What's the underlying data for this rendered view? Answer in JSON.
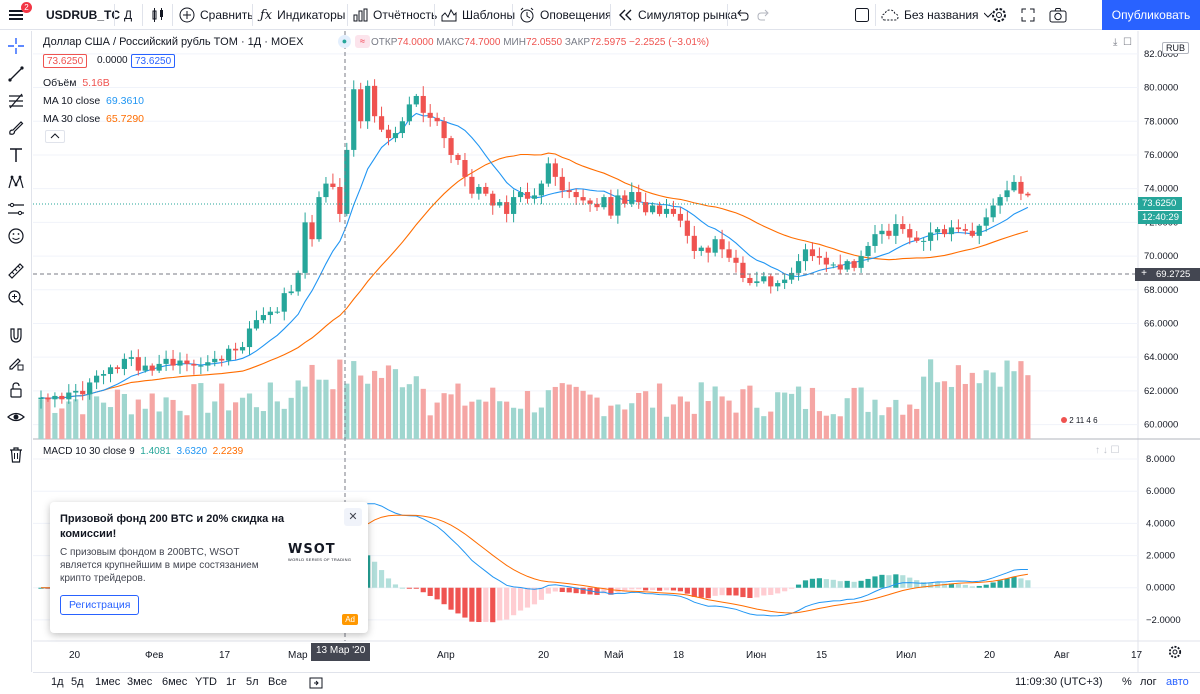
{
  "toolbar": {
    "symbol": "USDRUB_TC",
    "notifications": "2",
    "interval": "Д",
    "compare": "Сравнить",
    "indicators": "Индикаторы",
    "financials": "Отчётность",
    "templates": "Шаблоны",
    "alerts": "Оповещения",
    "replay": "Симулятор рынка",
    "layout_name": "Без названия",
    "publish": "Опубликовать"
  },
  "legend": {
    "title": "Доллар США / Российский рубль TOM · 1Д · MOEX",
    "open_label": "ОТКР",
    "open": "74.0000",
    "high_label": "МАКС",
    "high": "74.7000",
    "low_label": "МИН",
    "low": "72.0550",
    "close_label": "ЗАКР",
    "close": "72.5975",
    "change": "−2.2525 (−3.01%)",
    "bid": "73.6250",
    "spread": "0.0000",
    "ask": "73.6250",
    "volume_label": "Объём",
    "volume": "5.16В",
    "ma10_label": "MA 10 close",
    "ma10": "69.3610",
    "ma30_label": "MA 30 close",
    "ma30": "65.7290",
    "macd_label": "MACD 10 30 close 9",
    "macd_hist": "1.4081",
    "macd_line": "3.6320",
    "macd_signal": "2.2239"
  },
  "price_axis": {
    "currency": "RUB",
    "labels": [
      "82.0000",
      "80.0000",
      "78.0000",
      "76.0000",
      "74.0000",
      "72.0000",
      "70.0000",
      "68.0000",
      "66.0000",
      "64.0000",
      "62.0000",
      "60.0000"
    ],
    "last_price": "73.6250",
    "countdown": "12:40:29",
    "crosshair_price": "69.2725",
    "events": "2 11 4 6"
  },
  "macd_axis": {
    "labels": [
      "8.0000",
      "6.0000",
      "4.0000",
      "2.0000",
      "0.0000",
      "−2.0000"
    ]
  },
  "time_axis": {
    "labels": [
      "20",
      "Фев",
      "17",
      "Мар",
      "Апр",
      "20",
      "Май",
      "18",
      "Июн",
      "15",
      "Июл",
      "20",
      "Авг",
      "17"
    ],
    "crosshair_date": "13 Мар '20"
  },
  "bottom": {
    "ranges": [
      "1д",
      "5д",
      "1мес",
      "3мес",
      "6мес",
      "YTD",
      "1г",
      "5л",
      "Все"
    ],
    "time": "11:09:30 (UTC+3)",
    "percent": "%",
    "log": "лог",
    "auto": "авто"
  },
  "ad": {
    "title": "Призовой фонд 200 BTC и 20% скидка на комиссии!",
    "body": "С призовым фондом в 200BTC, WSOT является крупнейшим в мире состязанием крипто трейдеров.",
    "button": "Регистрация",
    "logo": "WSOT",
    "logo_sub": "WORLD SERIES OF TRADING",
    "tag": "Ad"
  },
  "colors": {
    "up": "#26a69a",
    "down": "#ef5350",
    "ma10": "#2196f3",
    "ma30": "#ff6d00",
    "accent": "#2962ff"
  },
  "chart_data": {
    "type": "candlestick",
    "title": "Доллар США / Российский рубль TOM · 1Д · MOEX",
    "ylim": [
      59.5,
      83
    ],
    "closes": [
      61.6,
      61.5,
      61.7,
      61.5,
      61.9,
      62.0,
      61.8,
      62.5,
      62.9,
      63.0,
      63.4,
      63.3,
      63.9,
      64.0,
      63.2,
      63.5,
      63.2,
      63.6,
      63.9,
      63.5,
      63.8,
      63.6,
      63.5,
      63.5,
      63.7,
      63.9,
      63.8,
      64.5,
      64.4,
      64.6,
      65.7,
      66.2,
      66.5,
      66.7,
      66.7,
      67.8,
      67.9,
      69.0,
      72.0,
      71.0,
      73.5,
      74.3,
      74.1,
      72.5,
      76.3,
      79.9,
      78.0,
      80.1,
      78.3,
      77.5,
      77.0,
      77.3,
      78.0,
      79.0,
      79.5,
      78.5,
      78.2,
      78.0,
      77.0,
      76.0,
      75.7,
      74.7,
      73.7,
      74.1,
      73.7,
      73.0,
      73.2,
      72.5,
      73.5,
      73.8,
      73.4,
      73.6,
      74.3,
      75.5,
      74.7,
      73.9,
      73.8,
      73.5,
      73.3,
      73.1,
      72.9,
      73.5,
      72.4,
      73.6,
      73.1,
      73.8,
      73.2,
      72.6,
      73.0,
      72.5,
      72.8,
      72.5,
      72.1,
      71.2,
      70.3,
      70.5,
      70.2,
      71.0,
      70.4,
      69.9,
      69.6,
      68.7,
      68.4,
      68.5,
      68.8,
      68.2,
      68.4,
      68.6,
      69.0,
      69.7,
      70.4,
      70.0,
      69.9,
      69.5,
      69.5,
      69.2,
      69.7,
      69.3,
      70.0,
      70.6,
      71.3,
      71.5,
      71.2,
      71.9,
      71.6,
      71.1,
      70.9,
      70.9,
      71.4,
      71.6,
      71.3,
      71.7,
      71.6,
      71.5,
      71.2,
      71.8,
      72.3,
      73.0,
      73.5,
      73.9,
      74.4,
      73.7,
      73.6
    ]
  }
}
